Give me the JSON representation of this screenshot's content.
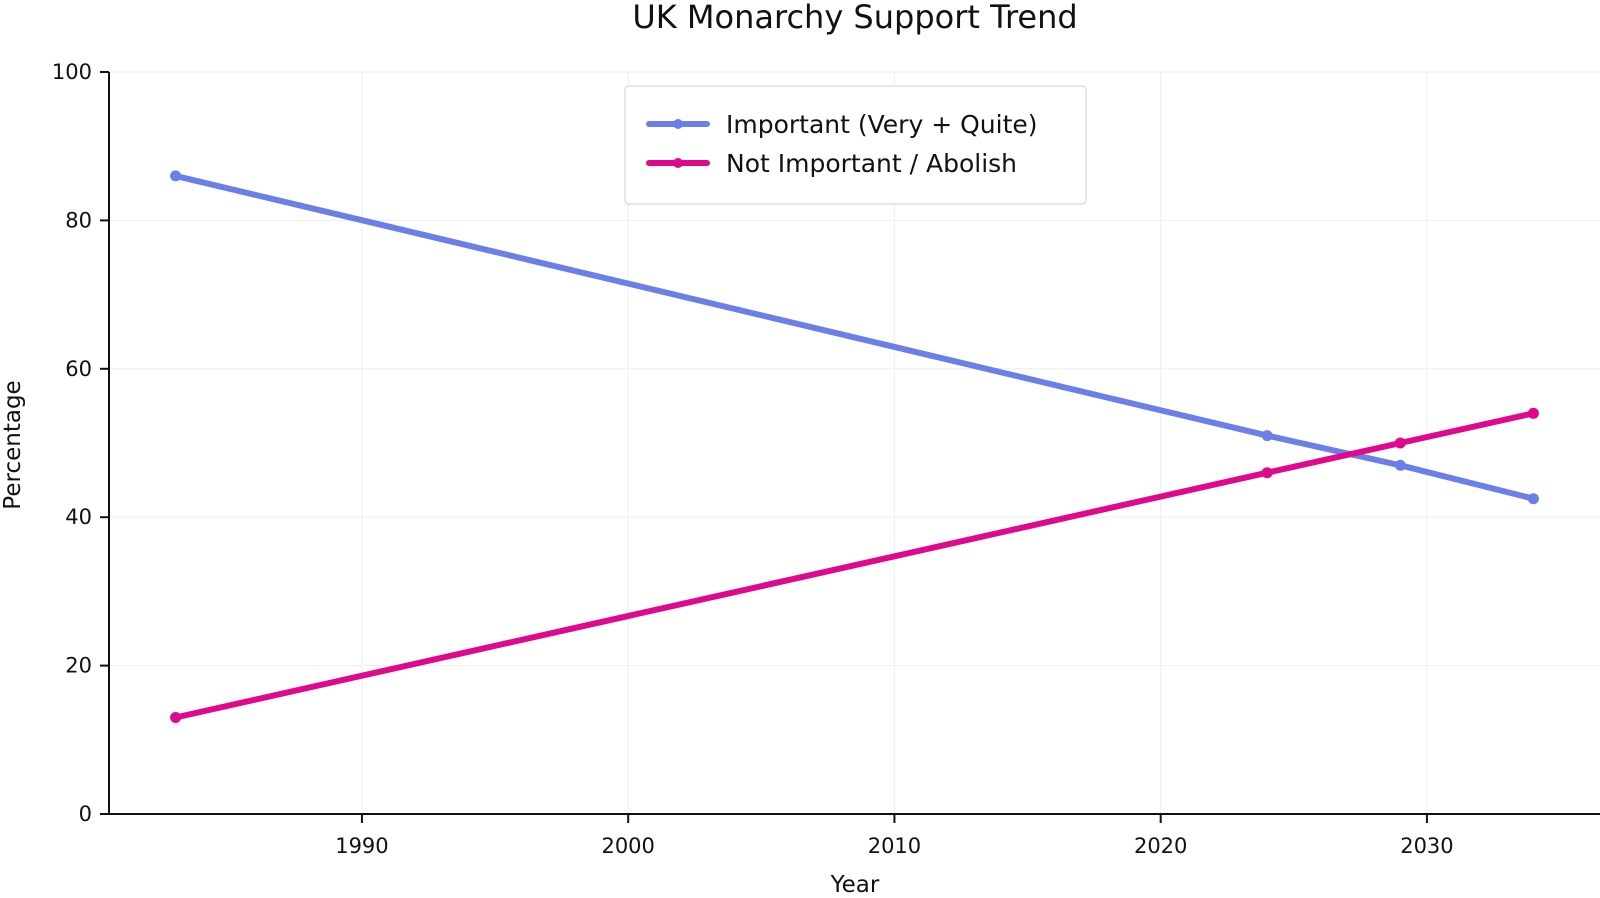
{
  "chart_data": {
    "type": "line",
    "title": "UK Monarchy Support Trend",
    "xlabel": "Year",
    "ylabel": "Percentage",
    "xlim": [
      1980.5,
      2036.5
    ],
    "ylim": [
      0,
      100
    ],
    "xticks": [
      1990,
      2000,
      2010,
      2020,
      2030
    ],
    "yticks": [
      0,
      20,
      40,
      60,
      80,
      100
    ],
    "grid": true,
    "legend_position": "top-center",
    "series": [
      {
        "name": "Important (Very + Quite)",
        "color": "#6b7fe8",
        "x": [
          1983,
          2024,
          2029,
          2034
        ],
        "y": [
          86,
          51,
          47,
          42.5
        ]
      },
      {
        "name": "Not Important / Abolish",
        "color": "#e0088c",
        "x": [
          1983,
          2024,
          2029,
          2034
        ],
        "y": [
          13,
          46,
          50,
          54
        ]
      }
    ]
  }
}
